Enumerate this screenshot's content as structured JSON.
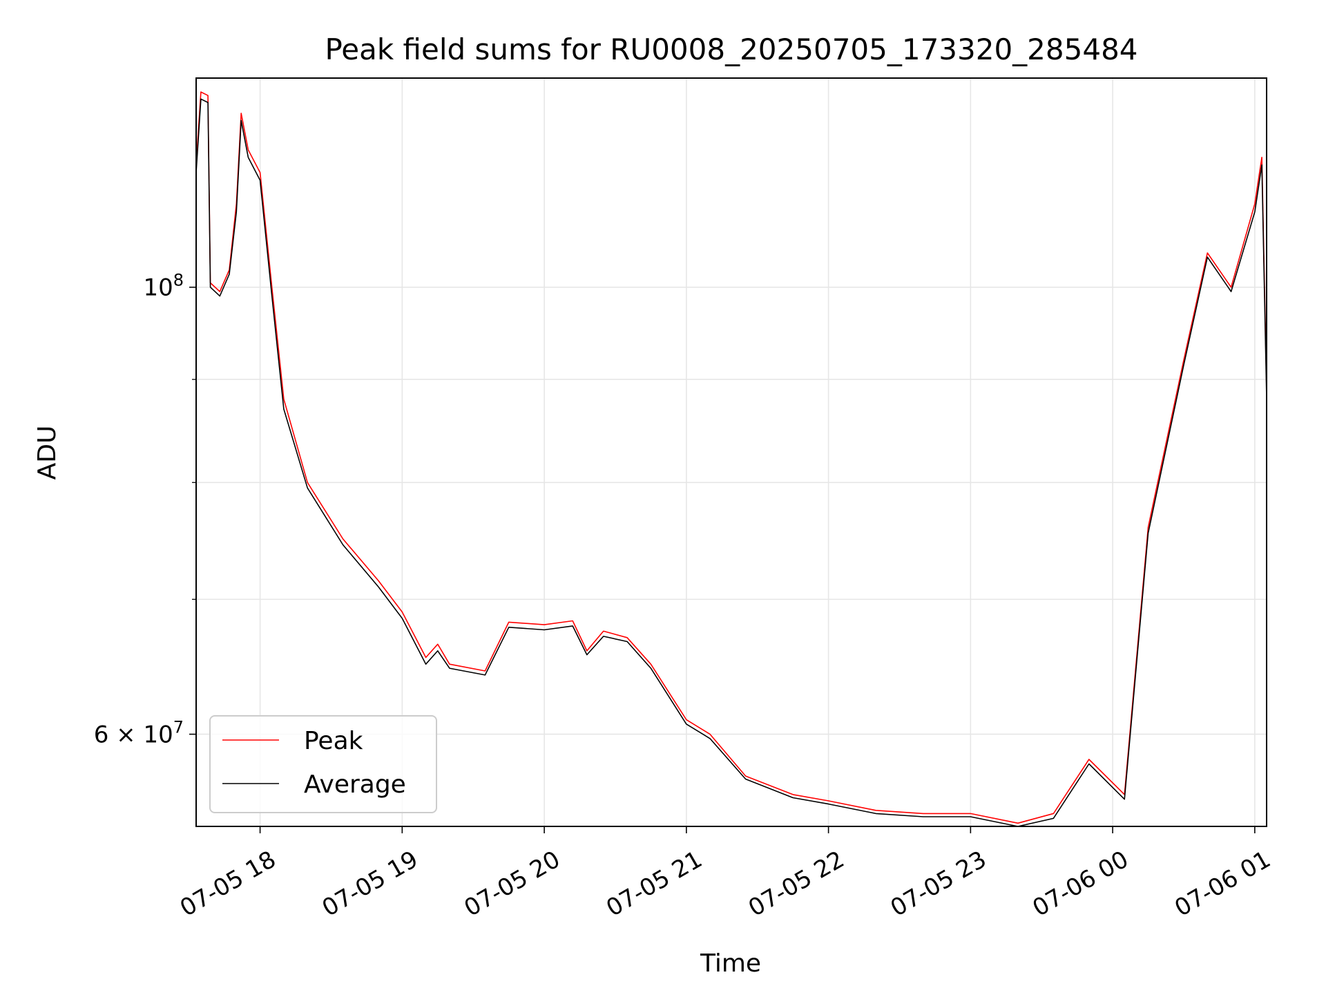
{
  "chart_data": {
    "type": "line",
    "title": "Peak field sums for RU0008_20250705_173320_285484",
    "xlabel": "Time",
    "ylabel": "ADU",
    "yscale": "log",
    "xlim": [
      "2025-07-05 17:33",
      "2025-07-06 01:05"
    ],
    "ylim": [
      54000000,
      127000000
    ],
    "x_ticks": [
      "07-05 18",
      "07-05 19",
      "07-05 20",
      "07-05 21",
      "07-05 22",
      "07-05 23",
      "07-06 00",
      "07-06 01"
    ],
    "y_ticks": [
      {
        "value": 100000000,
        "base": "10",
        "exp": "8",
        "mult": ""
      },
      {
        "value": 60000000,
        "base": "10",
        "exp": "7",
        "mult": "6 × "
      }
    ],
    "grid": true,
    "legend_position": "lower-left",
    "colors": {
      "peak": "#ff0000",
      "average": "#000000"
    },
    "series": [
      {
        "name": "Peak",
        "color": "#ff0000",
        "points": [
          [
            "2025-07-05 17:33",
            115000000
          ],
          [
            "2025-07-05 17:35",
            125000000
          ],
          [
            "2025-07-05 17:38",
            124500000
          ],
          [
            "2025-07-05 17:39",
            100500000
          ],
          [
            "2025-07-05 17:43",
            99500000
          ],
          [
            "2025-07-05 17:47",
            102000000
          ],
          [
            "2025-07-05 17:50",
            110000000
          ],
          [
            "2025-07-05 17:52",
            122000000
          ],
          [
            "2025-07-05 17:55",
            117000000
          ],
          [
            "2025-07-05 18:00",
            114000000
          ],
          [
            "2025-07-05 18:05",
            100000000
          ],
          [
            "2025-07-05 18:10",
            88000000
          ],
          [
            "2025-07-05 18:20",
            80000000
          ],
          [
            "2025-07-05 18:35",
            75000000
          ],
          [
            "2025-07-05 18:50",
            71500000
          ],
          [
            "2025-07-05 19:00",
            69000000
          ],
          [
            "2025-07-05 19:10",
            65500000
          ],
          [
            "2025-07-05 19:15",
            66500000
          ],
          [
            "2025-07-05 19:20",
            65000000
          ],
          [
            "2025-07-05 19:35",
            64500000
          ],
          [
            "2025-07-05 19:45",
            68200000
          ],
          [
            "2025-07-05 20:00",
            68000000
          ],
          [
            "2025-07-05 20:12",
            68300000
          ],
          [
            "2025-07-05 20:18",
            66000000
          ],
          [
            "2025-07-05 20:25",
            67500000
          ],
          [
            "2025-07-05 20:35",
            67000000
          ],
          [
            "2025-07-05 20:45",
            65000000
          ],
          [
            "2025-07-05 21:00",
            61000000
          ],
          [
            "2025-07-05 21:10",
            60000000
          ],
          [
            "2025-07-05 21:25",
            57200000
          ],
          [
            "2025-07-05 21:45",
            56000000
          ],
          [
            "2025-07-05 22:00",
            55600000
          ],
          [
            "2025-07-05 22:20",
            55000000
          ],
          [
            "2025-07-05 22:40",
            54800000
          ],
          [
            "2025-07-05 23:00",
            54800000
          ],
          [
            "2025-07-05 23:20",
            54200000
          ],
          [
            "2025-07-05 23:35",
            54800000
          ],
          [
            "2025-07-05 23:50",
            58300000
          ],
          [
            "2025-07-06 00:05",
            56000000
          ],
          [
            "2025-07-06 00:15",
            76000000
          ],
          [
            "2025-07-06 00:30",
            92000000
          ],
          [
            "2025-07-06 00:40",
            104000000
          ],
          [
            "2025-07-06 00:50",
            100000000
          ],
          [
            "2025-07-06 01:00",
            110000000
          ],
          [
            "2025-07-06 01:03",
            116000000
          ],
          [
            "2025-07-06 01:05",
            89000000
          ]
        ]
      },
      {
        "name": "Average",
        "color": "#000000",
        "points": [
          [
            "2025-07-05 17:33",
            114000000
          ],
          [
            "2025-07-05 17:35",
            124000000
          ],
          [
            "2025-07-05 17:38",
            123500000
          ],
          [
            "2025-07-05 17:39",
            100000000
          ],
          [
            "2025-07-05 17:43",
            99000000
          ],
          [
            "2025-07-05 17:47",
            101500000
          ],
          [
            "2025-07-05 17:50",
            109000000
          ],
          [
            "2025-07-05 17:52",
            121000000
          ],
          [
            "2025-07-05 17:55",
            116000000
          ],
          [
            "2025-07-05 18:00",
            113000000
          ],
          [
            "2025-07-05 18:05",
            99000000
          ],
          [
            "2025-07-05 18:10",
            87000000
          ],
          [
            "2025-07-05 18:20",
            79500000
          ],
          [
            "2025-07-05 18:35",
            74500000
          ],
          [
            "2025-07-05 18:50",
            71000000
          ],
          [
            "2025-07-05 19:00",
            68500000
          ],
          [
            "2025-07-05 19:10",
            65000000
          ],
          [
            "2025-07-05 19:15",
            66000000
          ],
          [
            "2025-07-05 19:20",
            64700000
          ],
          [
            "2025-07-05 19:35",
            64200000
          ],
          [
            "2025-07-05 19:45",
            67800000
          ],
          [
            "2025-07-05 20:00",
            67600000
          ],
          [
            "2025-07-05 20:12",
            67900000
          ],
          [
            "2025-07-05 20:18",
            65700000
          ],
          [
            "2025-07-05 20:25",
            67100000
          ],
          [
            "2025-07-05 20:35",
            66700000
          ],
          [
            "2025-07-05 20:45",
            64700000
          ],
          [
            "2025-07-05 21:00",
            60700000
          ],
          [
            "2025-07-05 21:10",
            59700000
          ],
          [
            "2025-07-05 21:25",
            57000000
          ],
          [
            "2025-07-05 21:45",
            55800000
          ],
          [
            "2025-07-05 22:00",
            55400000
          ],
          [
            "2025-07-05 22:20",
            54800000
          ],
          [
            "2025-07-05 22:40",
            54600000
          ],
          [
            "2025-07-05 23:00",
            54600000
          ],
          [
            "2025-07-05 23:20",
            54000000
          ],
          [
            "2025-07-05 23:35",
            54500000
          ],
          [
            "2025-07-05 23:50",
            58000000
          ],
          [
            "2025-07-06 00:05",
            55700000
          ],
          [
            "2025-07-06 00:15",
            75500000
          ],
          [
            "2025-07-06 00:30",
            91500000
          ],
          [
            "2025-07-06 00:40",
            103500000
          ],
          [
            "2025-07-06 00:50",
            99500000
          ],
          [
            "2025-07-06 01:00",
            109000000
          ],
          [
            "2025-07-06 01:03",
            115000000
          ],
          [
            "2025-07-06 01:05",
            88000000
          ]
        ]
      }
    ]
  }
}
